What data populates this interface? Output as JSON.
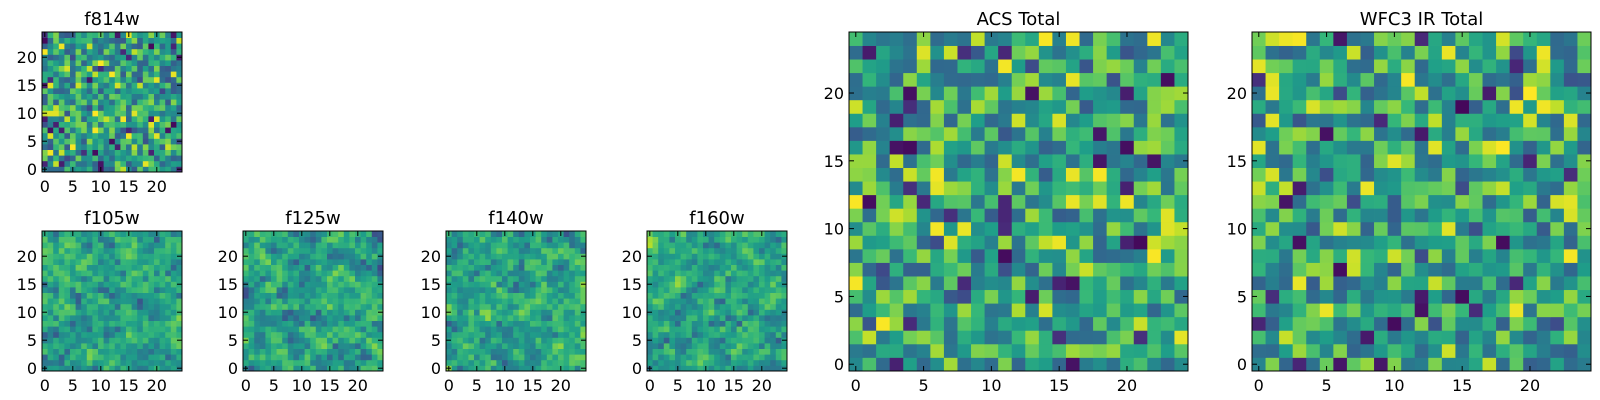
{
  "chart_data": [
    {
      "id": "f814w",
      "type": "heatmap",
      "title": "f814w",
      "size": 25,
      "seed": 11,
      "smooth": 0.0,
      "bias": 0.55,
      "xticks": [
        0,
        5,
        10,
        15,
        20
      ],
      "yticks": [
        0,
        5,
        10,
        15,
        20
      ],
      "xlim": [
        -0.5,
        24.5
      ],
      "ylim": [
        -0.5,
        24.5
      ],
      "colormap": "viridis"
    },
    {
      "id": "f105w",
      "type": "heatmap",
      "title": "f105w",
      "size": 25,
      "seed": 23,
      "smooth": 0.6,
      "bias": 0.62,
      "xticks": [
        0,
        5,
        10,
        15,
        20
      ],
      "yticks": [
        0,
        5,
        10,
        15,
        20
      ],
      "xlim": [
        -0.5,
        24.5
      ],
      "ylim": [
        -0.5,
        24.5
      ],
      "colormap": "viridis"
    },
    {
      "id": "f125w",
      "type": "heatmap",
      "title": "f125w",
      "size": 25,
      "seed": 37,
      "smooth": 0.6,
      "bias": 0.58,
      "xticks": [
        0,
        5,
        10,
        15,
        20
      ],
      "yticks": [
        0,
        5,
        10,
        15,
        20
      ],
      "xlim": [
        -0.5,
        24.5
      ],
      "ylim": [
        -0.5,
        24.5
      ],
      "colormap": "viridis"
    },
    {
      "id": "f140w",
      "type": "heatmap",
      "title": "f140w",
      "size": 25,
      "seed": 41,
      "smooth": 0.6,
      "bias": 0.6,
      "xticks": [
        0,
        5,
        10,
        15,
        20
      ],
      "yticks": [
        0,
        5,
        10,
        15,
        20
      ],
      "xlim": [
        -0.5,
        24.5
      ],
      "ylim": [
        -0.5,
        24.5
      ],
      "colormap": "viridis"
    },
    {
      "id": "f160w",
      "type": "heatmap",
      "title": "f160w",
      "size": 25,
      "seed": 53,
      "smooth": 0.6,
      "bias": 0.6,
      "xticks": [
        0,
        5,
        10,
        15,
        20
      ],
      "yticks": [
        0,
        5,
        10,
        15,
        20
      ],
      "xlim": [
        -0.5,
        24.5
      ],
      "ylim": [
        -0.5,
        24.5
      ],
      "colormap": "viridis"
    },
    {
      "id": "acs-total",
      "type": "heatmap",
      "title": "ACS Total",
      "size": 25,
      "seed": 67,
      "smooth": 0.0,
      "bias": 0.6,
      "xticks": [
        0,
        5,
        10,
        15,
        20
      ],
      "yticks": [
        0,
        5,
        10,
        15,
        20
      ],
      "xlim": [
        -0.5,
        24.5
      ],
      "ylim": [
        -0.5,
        24.5
      ],
      "colormap": "viridis"
    },
    {
      "id": "wfc3-ir-total",
      "type": "heatmap",
      "title": "WFC3 IR Total",
      "size": 25,
      "seed": 79,
      "smooth": 0.0,
      "bias": 0.58,
      "xticks": [
        0,
        5,
        10,
        15,
        20
      ],
      "yticks": [
        0,
        5,
        10,
        15,
        20
      ],
      "xlim": [
        -0.5,
        24.5
      ],
      "ylim": [
        -0.5,
        24.5
      ],
      "colormap": "viridis"
    }
  ]
}
